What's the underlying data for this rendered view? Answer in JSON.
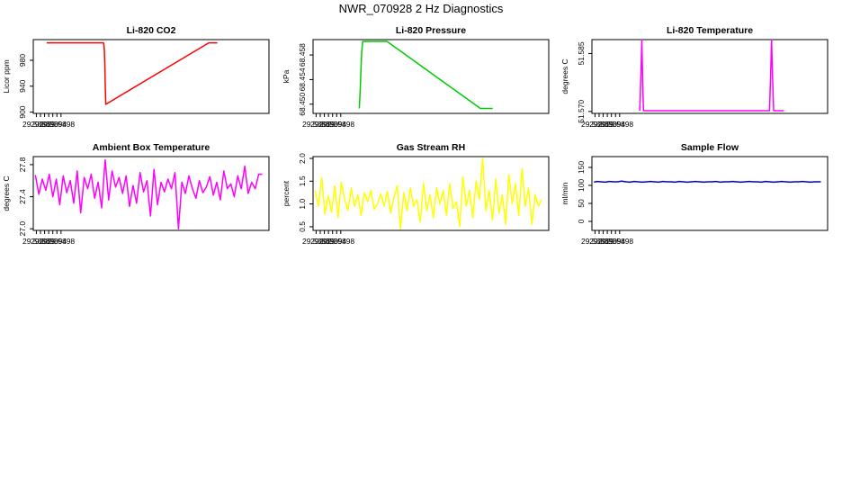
{
  "title": "NWR_070928  2 Hz Diagnostics",
  "chart_data": [
    {
      "type": "line",
      "title": "Li-820 CO2",
      "ylabel": "Licor ppm",
      "color": "#ff0000",
      "xlim": [
        29.58845,
        29.59993
      ],
      "ylim": [
        898,
        1012
      ],
      "xticks": [
        "29.5886",
        "29.5890",
        "29.5894",
        "29.5898"
      ],
      "yticks": [
        "900",
        "940",
        "980"
      ],
      "x": [
        29.5891,
        29.58912,
        29.59185,
        29.59187,
        29.59189,
        29.59191,
        29.59194,
        29.59196,
        29.59198,
        29.597,
        29.59702,
        29.5974,
        29.59742
      ],
      "y": [
        1007,
        1007,
        1007,
        1007,
        1004,
        995,
        970,
        935,
        912,
        1007,
        1007,
        1007,
        1007
      ]
    },
    {
      "type": "line",
      "title": "Li-820 Pressure",
      "ylabel": "kPa",
      "color": "#00cc00",
      "xlim": [
        29.58845,
        29.59993
      ],
      "ylim": [
        68.4485,
        68.4605
      ],
      "xticks": [
        "29.5886",
        "29.5890",
        "29.5894",
        "29.5898"
      ],
      "yticks": [
        "68.450",
        "68.454",
        "68.458"
      ],
      "x": [
        29.5907,
        29.59072,
        29.59075,
        29.59078,
        29.59082,
        29.59087,
        29.5909,
        29.5912,
        29.5914,
        29.5919,
        29.59205,
        29.5966,
        29.5968,
        29.597,
        29.5972
      ],
      "y": [
        68.4493,
        68.4505,
        68.4525,
        68.4555,
        68.4585,
        68.4602,
        68.4602,
        68.4602,
        68.4602,
        68.4602,
        68.4602,
        68.4493,
        68.4493,
        68.4493,
        68.4493
      ]
    },
    {
      "type": "line",
      "title": "Li-820 Temperature",
      "ylabel": "degrees C",
      "color": "#ff00ff",
      "xlim": [
        29.58845,
        29.59993
      ],
      "ylim": [
        51.5695,
        51.5886
      ],
      "xticks": [
        "29.5886",
        "29.5890",
        "29.5894",
        "29.5898"
      ],
      "yticks": [
        "51.570",
        "51.585"
      ],
      "x": [
        29.59078,
        29.59083,
        29.59088,
        29.59092,
        29.59096,
        29.591,
        29.5917,
        29.5919,
        29.5971,
        29.59715,
        29.5972,
        29.59725,
        29.5973,
        29.5976,
        29.5978
      ],
      "y": [
        51.5702,
        51.578,
        51.5885,
        51.578,
        51.5702,
        51.5702,
        51.5702,
        51.5702,
        51.5702,
        51.579,
        51.5885,
        51.579,
        51.5702,
        51.5702,
        51.5702
      ]
    },
    {
      "type": "line",
      "title": "Ambient Box Temperature",
      "ylabel": "degrees C",
      "color": "#ff00ff",
      "xlim": [
        29.58845,
        29.59993
      ],
      "ylim": [
        26.98,
        27.9
      ],
      "xticks": [
        "29.5886",
        "29.5890",
        "29.5894",
        "29.5898"
      ],
      "yticks": [
        "27.0",
        "27.4",
        "27.8"
      ],
      "x": [
        29.58855,
        29.58872,
        29.58889,
        29.58906,
        29.58923,
        29.5894,
        29.58957,
        29.58974,
        29.58991,
        29.59008,
        29.59025,
        29.59042,
        29.59059,
        29.59076,
        29.59093,
        29.5911,
        29.59127,
        29.59144,
        29.59161,
        29.59178,
        29.59195,
        29.59212,
        29.59229,
        29.59246,
        29.59263,
        29.5928,
        29.59297,
        29.59314,
        29.59331,
        29.59348,
        29.59365,
        29.59382,
        29.59399,
        29.59416,
        29.59433,
        29.5945,
        29.59467,
        29.59484,
        29.59501,
        29.59518,
        29.59535,
        29.59552,
        29.59569,
        29.59586,
        29.59603,
        29.5962,
        29.59637,
        29.59654,
        29.59671,
        29.59688,
        29.59705,
        29.59722,
        29.59739,
        29.59756,
        29.59773,
        29.5979,
        29.59807,
        29.59824,
        29.59841,
        29.59858,
        29.59875,
        29.59892,
        29.59909,
        29.59926,
        29.59943,
        29.5996
      ],
      "y": [
        27.67,
        27.43,
        27.62,
        27.48,
        27.68,
        27.4,
        27.62,
        27.3,
        27.66,
        27.45,
        27.6,
        27.32,
        27.72,
        27.2,
        27.64,
        27.5,
        27.68,
        27.38,
        27.58,
        27.26,
        27.86,
        27.36,
        27.72,
        27.52,
        27.64,
        27.44,
        27.66,
        27.28,
        27.54,
        27.32,
        27.7,
        27.46,
        27.6,
        27.16,
        27.74,
        27.3,
        27.58,
        27.46,
        27.62,
        27.5,
        27.7,
        27.0,
        27.58,
        27.44,
        27.66,
        27.5,
        27.38,
        27.6,
        27.45,
        27.52,
        27.65,
        27.42,
        27.58,
        27.36,
        27.72,
        27.5,
        27.56,
        27.4,
        27.66,
        27.5,
        27.78,
        27.44,
        27.58,
        27.5,
        27.68,
        27.68
      ]
    },
    {
      "type": "line",
      "title": "Gas Stream RH",
      "ylabel": "percent",
      "color": "#ffff00",
      "xlim": [
        29.58845,
        29.59993
      ],
      "ylim": [
        0.42,
        2.04
      ],
      "xticks": [
        "29.5886",
        "29.5890",
        "29.5894",
        "29.5898"
      ],
      "yticks": [
        "0.5",
        "1.0",
        "1.5",
        "2.0"
      ],
      "x": [
        29.58855,
        29.58871,
        29.58887,
        29.58903,
        29.58919,
        29.58935,
        29.58951,
        29.58967,
        29.58983,
        29.58999,
        29.59015,
        29.59031,
        29.59047,
        29.59063,
        29.59079,
        29.59095,
        29.59111,
        29.59127,
        29.59143,
        29.59159,
        29.59175,
        29.59191,
        29.59207,
        29.59223,
        29.59239,
        29.59255,
        29.59271,
        29.59287,
        29.59303,
        29.59319,
        29.59335,
        29.59351,
        29.59367,
        29.59383,
        29.59399,
        29.59415,
        29.59431,
        29.59447,
        29.59463,
        29.59479,
        29.59495,
        29.59511,
        29.59527,
        29.59543,
        29.59559,
        29.59575,
        29.59591,
        29.59607,
        29.59623,
        29.59639,
        29.59655,
        29.59671,
        29.59687,
        29.59703,
        29.59719,
        29.59735,
        29.59751,
        29.59767,
        29.59783,
        29.59799,
        29.59815,
        29.59831,
        29.59847,
        29.59863,
        29.59879,
        29.59895,
        29.59911,
        29.59927,
        29.59943,
        29.59959
      ],
      "y": [
        1.3,
        0.95,
        1.58,
        0.78,
        1.18,
        0.82,
        1.4,
        0.7,
        1.48,
        1.1,
        0.85,
        1.35,
        0.95,
        1.2,
        0.75,
        1.25,
        1.05,
        1.3,
        0.88,
        1.0,
        1.22,
        0.95,
        1.28,
        0.8,
        1.15,
        1.4,
        0.45,
        1.25,
        0.85,
        1.35,
        0.95,
        1.1,
        0.6,
        1.45,
        0.85,
        1.2,
        0.7,
        1.35,
        1.0,
        1.3,
        0.75,
        1.45,
        0.9,
        1.05,
        0.5,
        1.6,
        0.95,
        1.3,
        0.7,
        1.5,
        1.1,
        2.0,
        0.85,
        1.3,
        0.65,
        1.55,
        0.8,
        1.2,
        0.55,
        1.65,
        1.0,
        1.45,
        0.75,
        1.78,
        0.95,
        1.35,
        0.55,
        1.2,
        0.95,
        1.1
      ]
    },
    {
      "type": "line",
      "title": "Sample Flow",
      "ylabel": "ml/min",
      "color": "#0000cc",
      "xlim": [
        29.58845,
        29.59993
      ],
      "ylim": [
        -25,
        180
      ],
      "xticks": [
        "29.5886",
        "29.5890",
        "29.5894",
        "29.5898"
      ],
      "yticks": [
        "0",
        "50",
        "100",
        "150"
      ],
      "x": [
        29.58855,
        29.5887,
        29.5889,
        29.5891,
        29.5893,
        29.5895,
        29.5897,
        29.5899,
        29.5901,
        29.5903,
        29.5905,
        29.5907,
        29.5909,
        29.5911,
        29.5913,
        29.5915,
        29.5917,
        29.5919,
        29.5921,
        29.5923,
        29.5925,
        29.5927,
        29.5929,
        29.5931,
        29.5933,
        29.5935,
        29.5937,
        29.5939,
        29.5941,
        29.5943,
        29.5945,
        29.5947,
        29.5949,
        29.5951,
        29.5953,
        29.5955,
        29.5957,
        29.5959,
        29.5961,
        29.5963,
        29.5965,
        29.5967,
        29.5969,
        29.5971,
        29.5973,
        29.5975,
        29.5977,
        29.5979,
        29.5981,
        29.5983,
        29.5985,
        29.5987,
        29.5989,
        29.5991,
        29.5993,
        29.5995,
        29.5996
      ],
      "y": [
        109,
        111,
        110,
        109,
        111,
        110,
        110,
        112,
        110,
        109,
        111,
        110,
        109,
        110,
        111,
        110,
        109,
        111,
        110,
        110,
        109,
        111,
        110,
        109,
        110,
        111,
        110,
        109,
        110,
        110,
        111,
        109,
        110,
        110,
        111,
        110,
        109,
        110,
        111,
        110,
        110,
        109,
        111,
        110,
        109,
        110,
        111,
        110,
        109,
        110,
        110,
        111,
        110,
        109,
        110,
        110,
        110
      ]
    }
  ]
}
